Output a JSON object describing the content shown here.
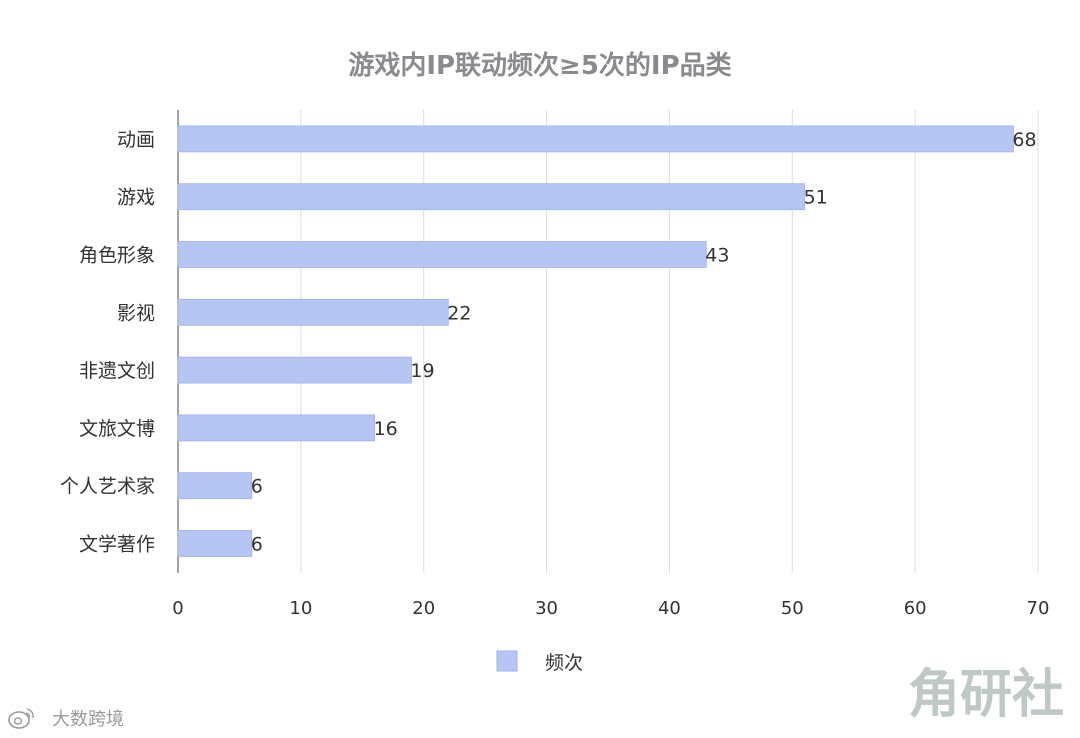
{
  "chart_data": {
    "type": "bar",
    "orientation": "horizontal",
    "title": "游戏内IP联动频次≥5次的IP品类",
    "categories": [
      "动画",
      "游戏",
      "角色形象",
      "影视",
      "非遗文创",
      "文旅文博",
      "个人艺术家",
      "文学著作"
    ],
    "series": [
      {
        "name": "频次",
        "values": [
          68,
          51,
          43,
          22,
          19,
          16,
          6,
          6
        ],
        "color": "#b6c5f2"
      }
    ],
    "xlim": [
      0,
      70
    ],
    "xticks": [
      0,
      10,
      20,
      30,
      40,
      50,
      60,
      70
    ],
    "grid": "vertical",
    "legend_position": "bottom-center",
    "data_labels": true
  },
  "watermarks": {
    "brand": "角研社",
    "source_icon": "weibo-icon",
    "source": "大数跨境"
  }
}
